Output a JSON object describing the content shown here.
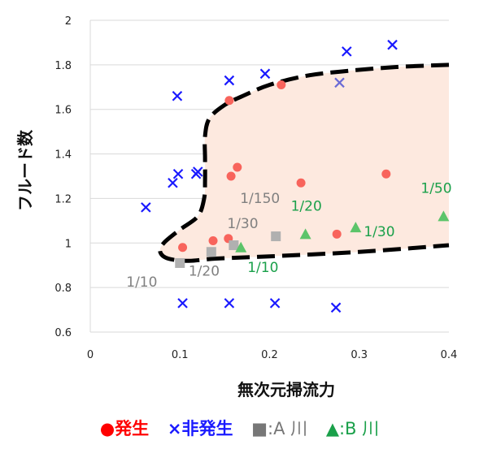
{
  "chart_data": {
    "type": "scatter",
    "xlabel": "無次元掃流力",
    "ylabel": "フルード数",
    "xlim": [
      0,
      0.4
    ],
    "ylim": [
      0.6,
      2.0
    ],
    "x_ticks": [
      "0",
      "0.1",
      "0.2",
      "0.3",
      "0.4"
    ],
    "y_ticks": [
      "0.6",
      "0.8",
      "1",
      "1.2",
      "1.4",
      "1.6",
      "1.8",
      "2"
    ],
    "grid": "horizontal",
    "colors": {
      "hassei": "#f8645c",
      "hihassei": "#1a1aff",
      "river_a": "#b0b0b0",
      "river_b": "#5cc46a",
      "region_fill": "#fde9df",
      "label_gray": "#808080",
      "label_green": "#1aa04a"
    },
    "series": [
      {
        "name": "発生",
        "marker": "circle",
        "points": [
          [
            0.103,
            0.98
          ],
          [
            0.137,
            1.01
          ],
          [
            0.154,
            1.02
          ],
          [
            0.155,
            1.64
          ],
          [
            0.157,
            1.3
          ],
          [
            0.164,
            1.34
          ],
          [
            0.213,
            1.71
          ],
          [
            0.235,
            1.27
          ],
          [
            0.275,
            1.04
          ],
          [
            0.33,
            1.31
          ]
        ]
      },
      {
        "name": "非発生",
        "marker": "x",
        "points": [
          [
            0.062,
            1.16
          ],
          [
            0.092,
            1.27
          ],
          [
            0.097,
            1.66
          ],
          [
            0.098,
            1.31
          ],
          [
            0.103,
            0.73
          ],
          [
            0.118,
            1.31
          ],
          [
            0.12,
            1.32
          ],
          [
            0.155,
            1.73
          ],
          [
            0.155,
            0.73
          ],
          [
            0.195,
            1.76
          ],
          [
            0.206,
            0.73
          ],
          [
            0.274,
            0.71
          ],
          [
            0.286,
            1.86
          ],
          [
            0.337,
            1.89
          ]
        ]
      },
      {
        "name": "A 川",
        "marker": "square",
        "points": [
          [
            0.1,
            0.91
          ],
          [
            0.135,
            0.96
          ],
          [
            0.16,
            0.99
          ],
          [
            0.207,
            1.03
          ]
        ],
        "labels": [
          "1/10",
          "1/20",
          "1/30",
          "1/150"
        ]
      },
      {
        "name": "B 川",
        "marker": "triangle",
        "points": [
          [
            0.168,
            0.98
          ],
          [
            0.24,
            1.04
          ],
          [
            0.296,
            1.07
          ],
          [
            0.394,
            1.12
          ]
        ],
        "labels": [
          "1/10",
          "1/20",
          "1/30",
          "1/50"
        ]
      }
    ],
    "extra_markers": [
      {
        "marker": "x",
        "color": "#6b6bd6",
        "point": [
          0.278,
          1.72
        ]
      }
    ],
    "region": {
      "style": "dashed-boundary",
      "boundary": [
        [
          0.4,
          1.8
        ],
        [
          0.34,
          1.79
        ],
        [
          0.28,
          1.77
        ],
        [
          0.24,
          1.75
        ],
        [
          0.2,
          1.71
        ],
        [
          0.17,
          1.66
        ],
        [
          0.15,
          1.62
        ],
        [
          0.133,
          1.56
        ],
        [
          0.128,
          1.48
        ],
        [
          0.128,
          1.38
        ],
        [
          0.128,
          1.28
        ],
        [
          0.127,
          1.2
        ],
        [
          0.12,
          1.12
        ],
        [
          0.1,
          1.06
        ],
        [
          0.082,
          1.0
        ],
        [
          0.078,
          0.96
        ],
        [
          0.087,
          0.93
        ],
        [
          0.11,
          0.92
        ],
        [
          0.14,
          0.93
        ],
        [
          0.2,
          0.94
        ],
        [
          0.3,
          0.96
        ],
        [
          0.4,
          0.99
        ]
      ]
    },
    "legend": {
      "hassei_symbol": "●",
      "hassei_label": "発生",
      "hihassei_symbol": "×",
      "hihassei_label": "非発生",
      "river_a_symbol": "■",
      "river_a_label": ":A 川",
      "river_b_symbol": "▲",
      "river_b_label": ":B 川"
    }
  }
}
